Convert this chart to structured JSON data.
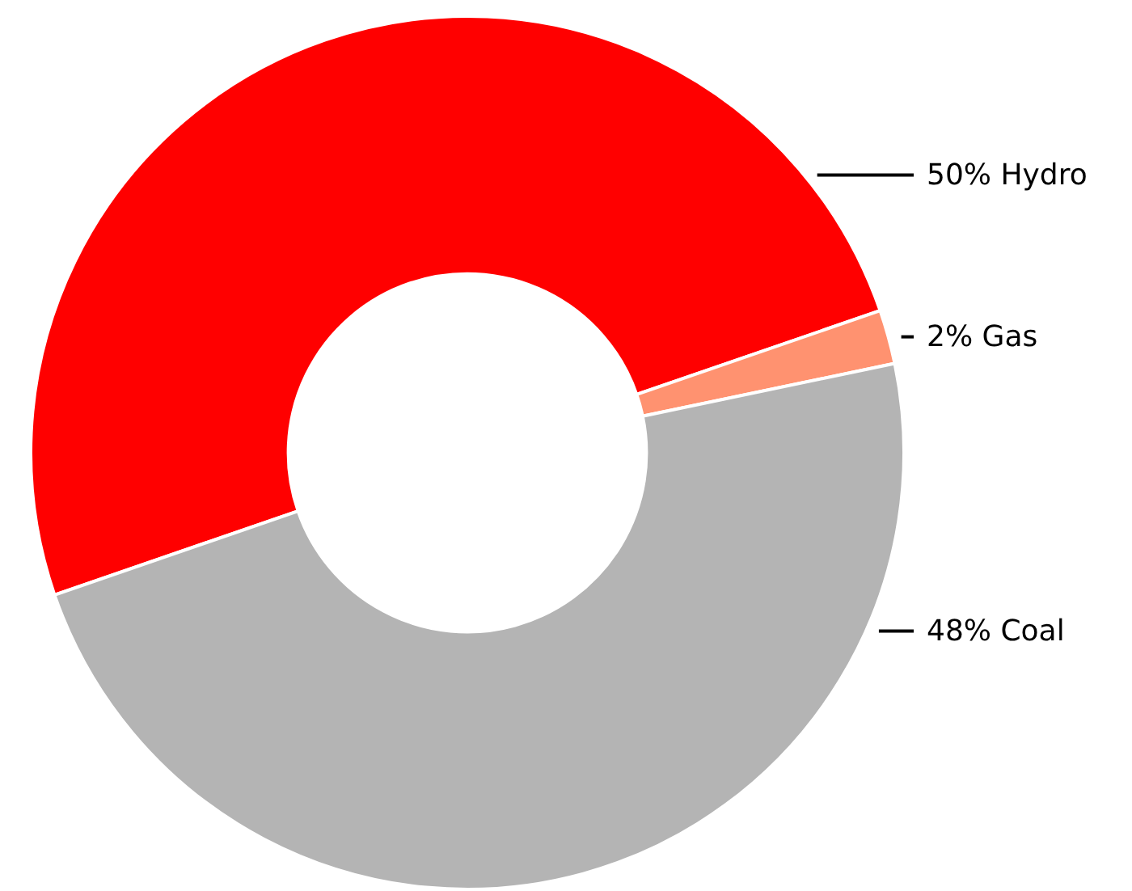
{
  "chart_data": {
    "type": "donut",
    "categories": [
      "50% Hydro",
      "2% Gas",
      "48% Coal"
    ],
    "values": [
      50,
      2,
      48
    ],
    "colors": [
      "#ff0000",
      "#ff9270",
      "#b4b4b4"
    ],
    "legend": false
  }
}
